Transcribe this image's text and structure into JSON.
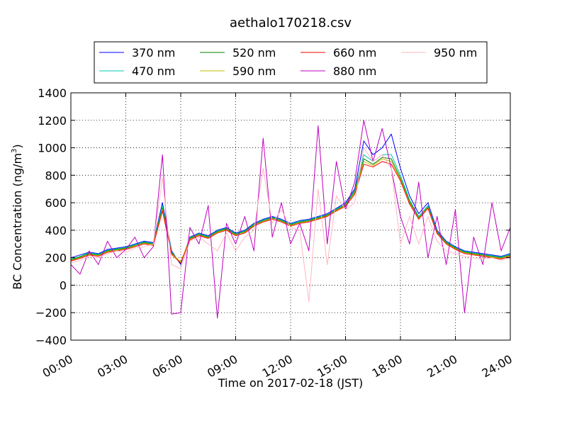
{
  "chart_data": {
    "type": "line",
    "title": "aethalo170218.csv",
    "xlabel": "Time on 2017-02-18 (JST)",
    "ylabel": "BC Concentration (ng/m",
    "ylabel_sup": "3",
    "ylabel_end": ")",
    "xlim": [
      0,
      24
    ],
    "ylim": [
      -400,
      1400
    ],
    "xticks": [
      0,
      3,
      6,
      9,
      12,
      15,
      18,
      21,
      24
    ],
    "xtick_labels": [
      "00:00",
      "03:00",
      "06:00",
      "09:00",
      "12:00",
      "15:00",
      "18:00",
      "21:00",
      "24:00"
    ],
    "yticks": [
      -400,
      -200,
      0,
      200,
      400,
      600,
      800,
      1000,
      1200,
      1400
    ],
    "ytick_labels": [
      "−400",
      "−200",
      "0",
      "200",
      "400",
      "600",
      "800",
      "1000",
      "1200",
      "1400"
    ],
    "grid": true,
    "legend_position": "above plot",
    "x": [
      0.0,
      0.5,
      1.0,
      1.5,
      2.0,
      2.5,
      3.0,
      3.5,
      4.0,
      4.5,
      5.0,
      5.5,
      6.0,
      6.5,
      7.0,
      7.5,
      8.0,
      8.5,
      9.0,
      9.5,
      10.0,
      10.5,
      11.0,
      11.5,
      12.0,
      12.5,
      13.0,
      13.5,
      14.0,
      14.5,
      15.0,
      15.5,
      16.0,
      16.5,
      17.0,
      17.5,
      18.0,
      18.5,
      19.0,
      19.5,
      20.0,
      20.5,
      21.0,
      21.5,
      22.0,
      22.5,
      23.0,
      23.5,
      24.0
    ],
    "series": [
      {
        "name": "370 nm",
        "color": "#0000ff",
        "values": [
          200,
          220,
          240,
          230,
          260,
          270,
          280,
          300,
          320,
          310,
          600,
          250,
          150,
          350,
          380,
          360,
          400,
          420,
          380,
          400,
          450,
          480,
          500,
          480,
          450,
          470,
          480,
          500,
          520,
          560,
          600,
          700,
          1050,
          950,
          1000,
          1100,
          850,
          650,
          520,
          600,
          400,
          320,
          280,
          250,
          240,
          230,
          220,
          210,
          230
        ]
      },
      {
        "name": "470 nm",
        "color": "#00c8b4",
        "values": [
          190,
          210,
          235,
          225,
          255,
          265,
          275,
          295,
          315,
          305,
          580,
          240,
          160,
          345,
          375,
          355,
          395,
          415,
          375,
          395,
          445,
          475,
          495,
          475,
          445,
          465,
          475,
          495,
          515,
          555,
          590,
          690,
          950,
          900,
          950,
          950,
          800,
          620,
          500,
          580,
          390,
          315,
          275,
          245,
          235,
          225,
          215,
          205,
          225
        ]
      },
      {
        "name": "520 nm",
        "color": "#008000",
        "values": [
          185,
          205,
          230,
          220,
          250,
          260,
          270,
          290,
          310,
          300,
          560,
          235,
          165,
          340,
          370,
          350,
          390,
          410,
          370,
          390,
          440,
          470,
          490,
          470,
          440,
          460,
          470,
          490,
          510,
          550,
          585,
          680,
          920,
          880,
          930,
          920,
          780,
          610,
          490,
          570,
          385,
          310,
          270,
          240,
          230,
          220,
          210,
          200,
          220
        ]
      },
      {
        "name": "590 nm",
        "color": "#bfbf00",
        "values": [
          180,
          200,
          225,
          215,
          245,
          255,
          265,
          285,
          305,
          295,
          550,
          230,
          170,
          335,
          365,
          345,
          385,
          405,
          365,
          385,
          435,
          465,
          485,
          465,
          435,
          455,
          465,
          485,
          505,
          545,
          580,
          670,
          900,
          870,
          920,
          900,
          770,
          600,
          485,
          565,
          380,
          305,
          265,
          235,
          225,
          215,
          205,
          195,
          215
        ]
      },
      {
        "name": "660 nm",
        "color": "#ff0000",
        "values": [
          175,
          195,
          220,
          210,
          240,
          250,
          260,
          280,
          300,
          290,
          540,
          225,
          160,
          330,
          360,
          340,
          380,
          400,
          360,
          380,
          430,
          460,
          480,
          460,
          430,
          450,
          460,
          480,
          500,
          540,
          575,
          660,
          880,
          860,
          900,
          880,
          760,
          590,
          480,
          560,
          375,
          300,
          260,
          230,
          220,
          210,
          200,
          190,
          210
        ]
      },
      {
        "name": "880 nm",
        "color": "#bf00bf",
        "values": [
          150,
          80,
          250,
          150,
          320,
          200,
          260,
          350,
          200,
          280,
          950,
          -210,
          -200,
          420,
          300,
          580,
          -240,
          450,
          300,
          500,
          250,
          1070,
          350,
          600,
          300,
          450,
          250,
          1160,
          300,
          900,
          550,
          750,
          1200,
          900,
          1140,
          850,
          500,
          300,
          750,
          200,
          500,
          150,
          550,
          -200,
          350,
          150,
          600,
          250,
          420
        ]
      },
      {
        "name": "950 nm",
        "color": "#ffb6c1",
        "values": [
          160,
          180,
          210,
          200,
          230,
          250,
          240,
          270,
          280,
          300,
          780,
          150,
          120,
          320,
          350,
          300,
          250,
          380,
          250,
          350,
          400,
          850,
          450,
          550,
          420,
          400,
          -120,
          700,
          150,
          650,
          550,
          600,
          1000,
          900,
          950,
          850,
          300,
          500,
          300,
          500,
          320,
          250,
          230,
          210,
          200,
          190,
          200,
          180,
          200
        ]
      }
    ]
  }
}
